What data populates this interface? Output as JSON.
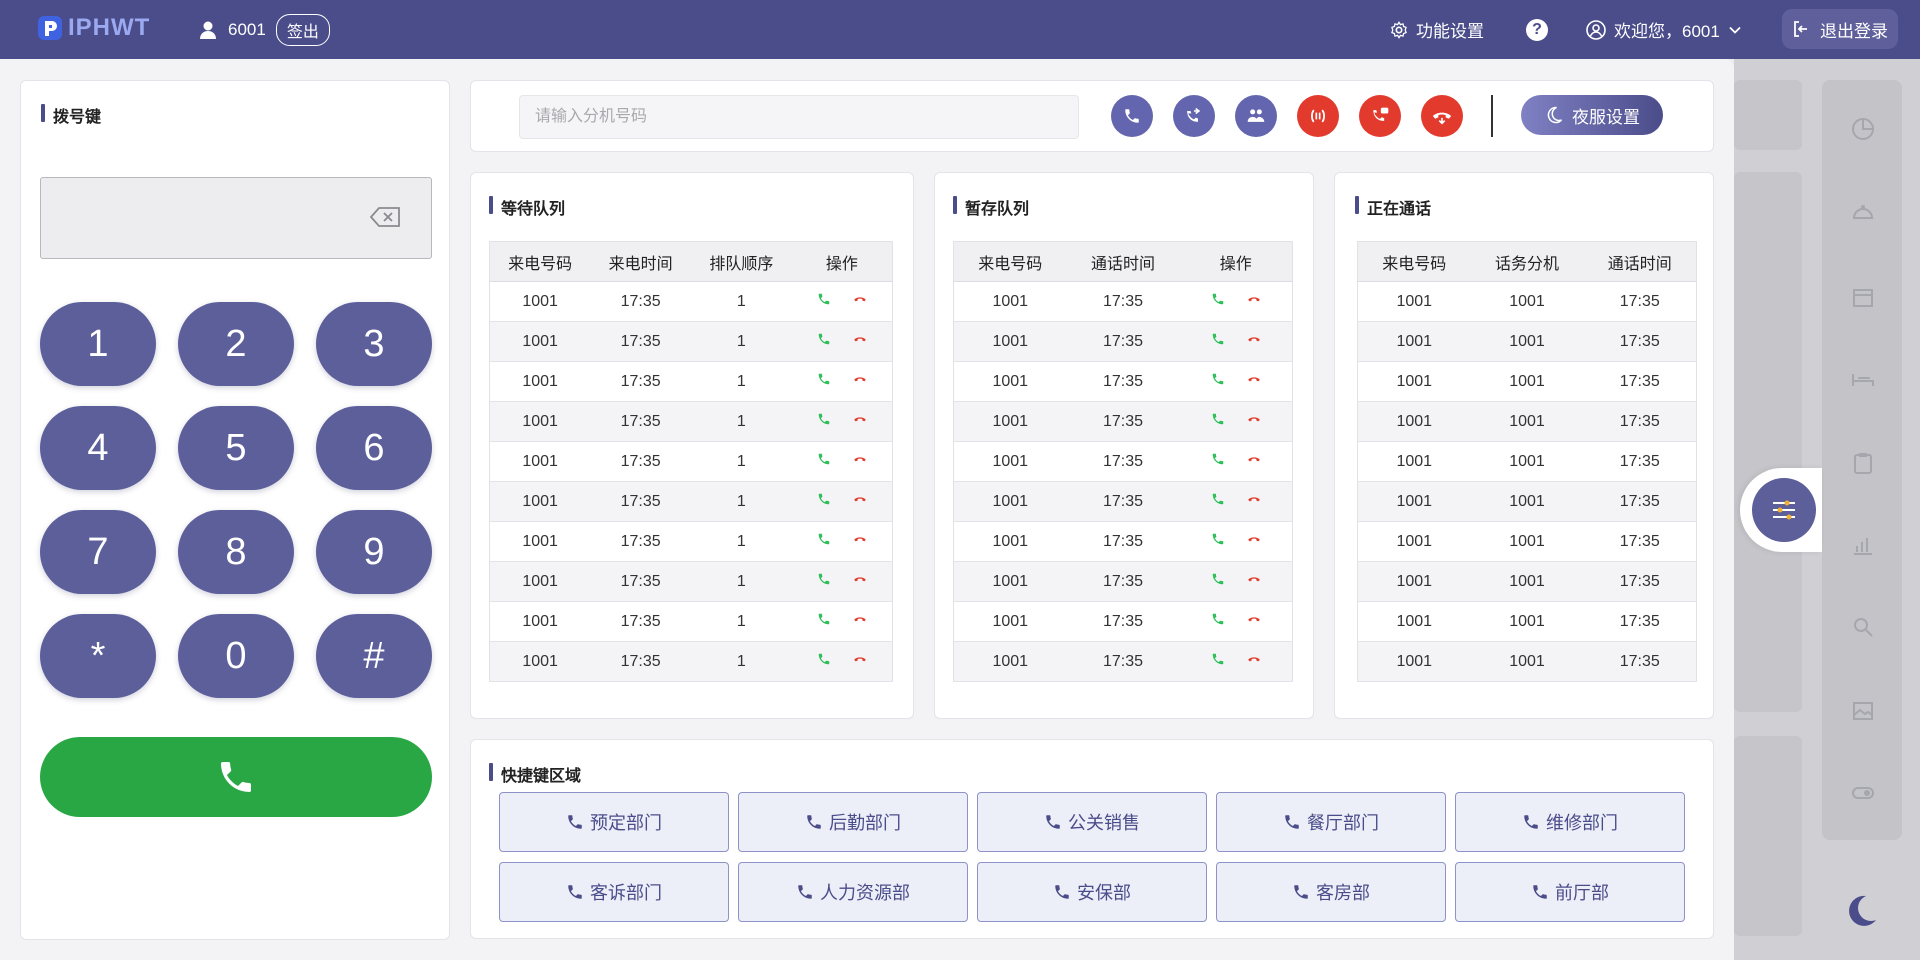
{
  "app": {
    "logo_text": "IPHWT"
  },
  "header": {
    "agent_id": "6001",
    "signout_label": "签出",
    "settings_label": "功能设置",
    "help_symbol": "?",
    "welcome_text": "欢迎您，6001",
    "logout_label": "退出登录"
  },
  "dialpad": {
    "title": "拨号键",
    "display_value": "",
    "keys": [
      "1",
      "2",
      "3",
      "4",
      "5",
      "6",
      "7",
      "8",
      "9",
      "*",
      "0",
      "#"
    ]
  },
  "toolbar": {
    "extension_placeholder": "请输入分机号码",
    "actions": [
      "call-icon",
      "transfer-icon",
      "conference-icon",
      "hold-icon",
      "message-icon",
      "hangup-icon"
    ],
    "night_label": "夜服设置"
  },
  "waiting_queue": {
    "title": "等待队列",
    "columns": [
      "来电号码",
      "来电时间",
      "排队顺序",
      "操作"
    ],
    "rows": [
      [
        "1001",
        "17:35",
        "1"
      ],
      [
        "1001",
        "17:35",
        "1"
      ],
      [
        "1001",
        "17:35",
        "1"
      ],
      [
        "1001",
        "17:35",
        "1"
      ],
      [
        "1001",
        "17:35",
        "1"
      ],
      [
        "1001",
        "17:35",
        "1"
      ],
      [
        "1001",
        "17:35",
        "1"
      ],
      [
        "1001",
        "17:35",
        "1"
      ],
      [
        "1001",
        "17:35",
        "1"
      ],
      [
        "1001",
        "17:35",
        "1"
      ]
    ]
  },
  "hold_queue": {
    "title": "暂存队列",
    "columns": [
      "来电号码",
      "通话时间",
      "操作"
    ],
    "rows": [
      [
        "1001",
        "17:35"
      ],
      [
        "1001",
        "17:35"
      ],
      [
        "1001",
        "17:35"
      ],
      [
        "1001",
        "17:35"
      ],
      [
        "1001",
        "17:35"
      ],
      [
        "1001",
        "17:35"
      ],
      [
        "1001",
        "17:35"
      ],
      [
        "1001",
        "17:35"
      ],
      [
        "1001",
        "17:35"
      ],
      [
        "1001",
        "17:35"
      ]
    ]
  },
  "active_calls": {
    "title": "正在通话",
    "columns": [
      "来电号码",
      "话务分机",
      "通话时间"
    ],
    "rows": [
      [
        "1001",
        "1001",
        "17:35"
      ],
      [
        "1001",
        "1001",
        "17:35"
      ],
      [
        "1001",
        "1001",
        "17:35"
      ],
      [
        "1001",
        "1001",
        "17:35"
      ],
      [
        "1001",
        "1001",
        "17:35"
      ],
      [
        "1001",
        "1001",
        "17:35"
      ],
      [
        "1001",
        "1001",
        "17:35"
      ],
      [
        "1001",
        "1001",
        "17:35"
      ],
      [
        "1001",
        "1001",
        "17:35"
      ],
      [
        "1001",
        "1001",
        "17:35"
      ]
    ]
  },
  "shortcuts": {
    "title": "快捷键区域",
    "items": [
      "预定部门",
      "后勤部门",
      "公关销售",
      "餐厅部门",
      "维修部门",
      "客诉部门",
      "人力资源部",
      "安保部",
      "客房部",
      "前厅部"
    ]
  },
  "colors": {
    "header": "#4b4c8a",
    "key": "#5c5f9a",
    "call_green": "#29a745",
    "hangup_red": "#e23a2c",
    "accept_green": "#2fbf5a"
  }
}
